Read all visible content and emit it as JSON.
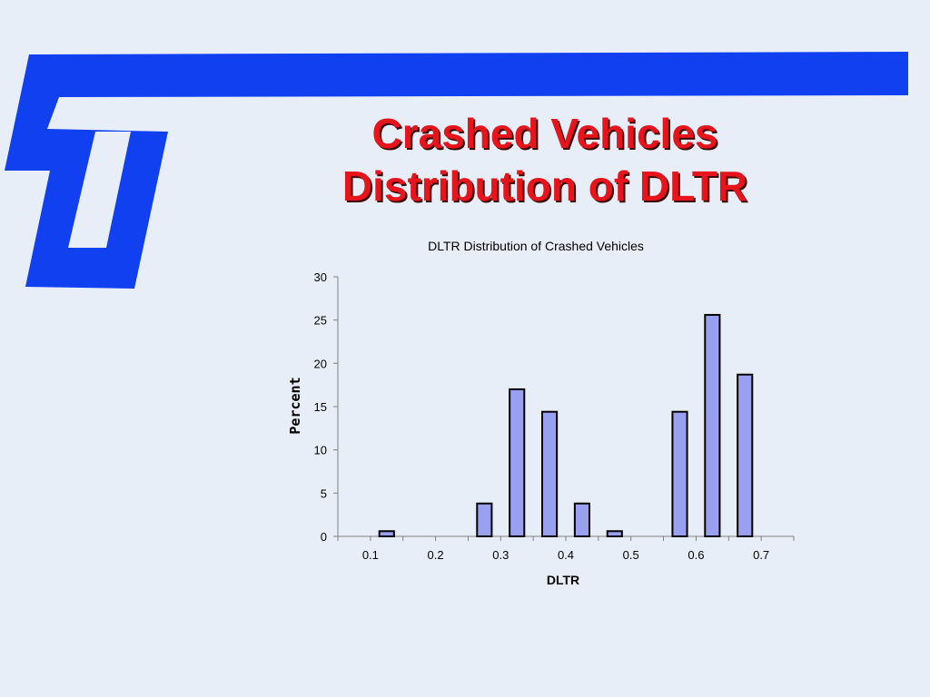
{
  "slide": {
    "title_line1": "Crashed Vehicles",
    "title_line2": "Distribution of DLTR"
  },
  "colors": {
    "background": "#e8eef8",
    "logo": "#1040f0",
    "title": "#e8141c",
    "bar_fill": "#9aa0f0",
    "bar_stroke": "#000000"
  },
  "chart_data": {
    "type": "bar",
    "title": "DLTR Distribution of Crashed Vehicles",
    "xlabel": "DLTR",
    "ylabel": "Percent",
    "xlim": [
      0.05,
      0.75
    ],
    "ylim": [
      0,
      30
    ],
    "x_ticks": [
      "0.1",
      "0.2",
      "0.3",
      "0.4",
      "0.5",
      "0.6",
      "0.7"
    ],
    "y_ticks": [
      "0",
      "5",
      "10",
      "15",
      "20",
      "25",
      "30"
    ],
    "bars": [
      {
        "x": 0.125,
        "value": 0.6
      },
      {
        "x": 0.275,
        "value": 3.8
      },
      {
        "x": 0.325,
        "value": 17.0
      },
      {
        "x": 0.375,
        "value": 14.4
      },
      {
        "x": 0.425,
        "value": 3.8
      },
      {
        "x": 0.475,
        "value": 0.6
      },
      {
        "x": 0.575,
        "value": 14.4
      },
      {
        "x": 0.625,
        "value": 25.6
      },
      {
        "x": 0.675,
        "value": 18.7
      }
    ],
    "grid": false,
    "legend": "none"
  }
}
